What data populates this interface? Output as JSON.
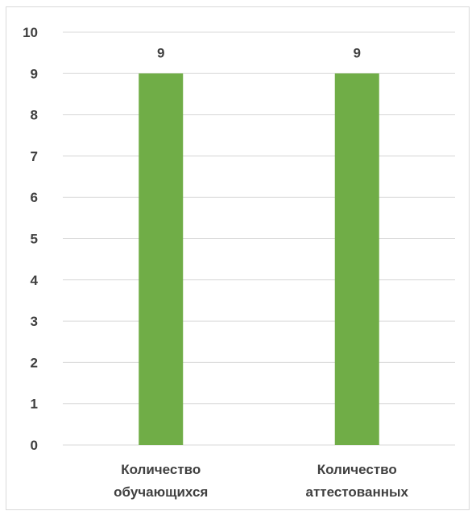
{
  "chart_data": {
    "type": "bar",
    "categories": [
      [
        "Количество",
        "обучающихся"
      ],
      [
        "Количество",
        "аттестованных"
      ]
    ],
    "values": [
      9,
      9
    ],
    "data_labels": [
      "9",
      "9"
    ],
    "ylim": [
      0,
      10
    ],
    "y_ticks": [
      0,
      1,
      2,
      3,
      4,
      5,
      6,
      7,
      8,
      9,
      10
    ],
    "grid": true,
    "legend": "none",
    "colors": {
      "bar": "#70ad47",
      "grid": "#d9d9d9",
      "text": "#404040"
    }
  }
}
